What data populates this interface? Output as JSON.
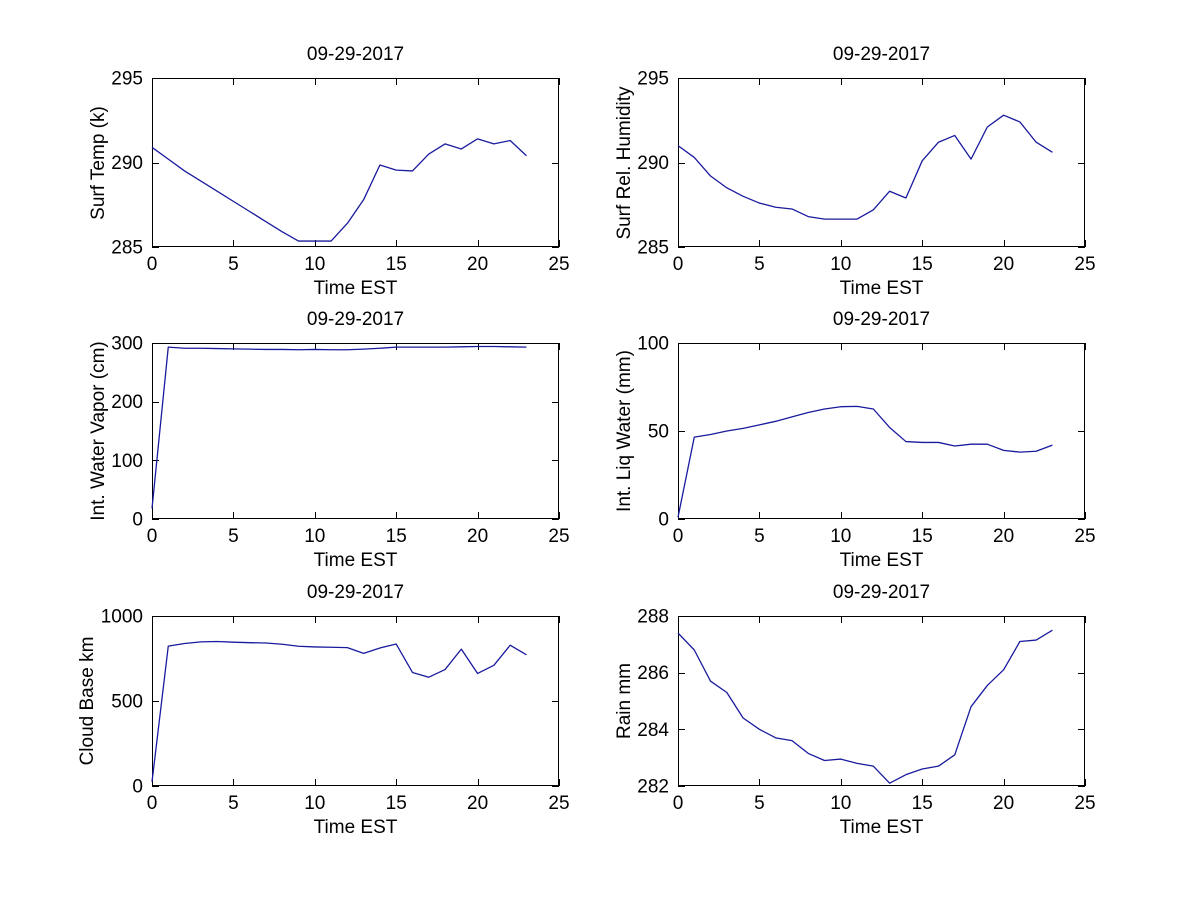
{
  "figure": {
    "background": "#ffffff",
    "axis_color": "#000000",
    "text_color": "#000000",
    "line_color": "#1a1a9e"
  },
  "chart_data": [
    {
      "type": "line",
      "title": "09-29-2017",
      "xlabel": "Time EST",
      "ylabel": "Surf Temp (k)",
      "xlim": [
        0,
        25
      ],
      "ylim": [
        285,
        295
      ],
      "xticks": [
        0,
        5,
        10,
        15,
        20,
        25
      ],
      "yticks": [
        285,
        290,
        295
      ],
      "grid": false,
      "x": [
        0,
        1,
        2,
        3,
        4,
        5,
        6,
        7,
        8,
        9,
        10,
        11,
        12,
        13,
        14,
        15,
        16,
        17,
        18,
        19,
        20,
        21,
        22,
        23
      ],
      "y": [
        290.9,
        290.2,
        289.5,
        288.9,
        288.3,
        287.7,
        287.1,
        286.5,
        285.9,
        285.35,
        285.35,
        285.35,
        286.4,
        287.8,
        289.85,
        289.55,
        289.5,
        290.5,
        291.1,
        290.8,
        291.4,
        291.1,
        291.3,
        290.4
      ]
    },
    {
      "type": "line",
      "title": "09-29-2017",
      "xlabel": "Time EST",
      "ylabel": "Surf Rel. Humidity",
      "xlim": [
        0,
        25
      ],
      "ylim": [
        285,
        295
      ],
      "xticks": [
        0,
        5,
        10,
        15,
        20,
        25
      ],
      "yticks": [
        285,
        290,
        295
      ],
      "grid": false,
      "x": [
        0,
        1,
        2,
        3,
        4,
        5,
        6,
        7,
        8,
        9,
        10,
        11,
        12,
        13,
        14,
        15,
        16,
        17,
        18,
        19,
        20,
        21,
        22,
        23
      ],
      "y": [
        291.0,
        290.3,
        289.2,
        288.5,
        288.0,
        287.6,
        287.35,
        287.25,
        286.8,
        286.65,
        286.65,
        286.65,
        287.2,
        288.3,
        287.9,
        290.1,
        291.2,
        291.6,
        290.2,
        292.1,
        292.8,
        292.4,
        291.2,
        290.6
      ]
    },
    {
      "type": "line",
      "title": "09-29-2017",
      "xlabel": "Time EST",
      "ylabel": "Int. Water Vapor (cm)",
      "xlim": [
        0,
        25
      ],
      "ylim": [
        0,
        300
      ],
      "xticks": [
        0,
        5,
        10,
        15,
        20,
        25
      ],
      "yticks": [
        0,
        100,
        200,
        300
      ],
      "grid": false,
      "x": [
        0,
        1,
        2,
        3,
        4,
        5,
        6,
        7,
        8,
        9,
        10,
        11,
        12,
        13,
        14,
        15,
        16,
        17,
        18,
        19,
        20,
        21,
        22,
        23
      ],
      "y": [
        18,
        293,
        291,
        291,
        290.5,
        290,
        289.5,
        289,
        289,
        288.5,
        289,
        288.5,
        288.5,
        289.5,
        291,
        293,
        293,
        293,
        293,
        293.5,
        294,
        294,
        293.5,
        293
      ]
    },
    {
      "type": "line",
      "title": "09-29-2017",
      "xlabel": "Time EST",
      "ylabel": "Int. Liq Water (mm)",
      "xlim": [
        0,
        25
      ],
      "ylim": [
        0,
        100
      ],
      "xticks": [
        0,
        5,
        10,
        15,
        20,
        25
      ],
      "yticks": [
        0,
        50,
        100
      ],
      "grid": false,
      "x": [
        0,
        1,
        2,
        3,
        4,
        5,
        6,
        7,
        8,
        9,
        10,
        11,
        12,
        13,
        14,
        15,
        16,
        17,
        18,
        19,
        20,
        21,
        22,
        23
      ],
      "y": [
        1,
        46.5,
        48,
        50,
        51.5,
        53.5,
        55.5,
        58,
        60.5,
        62.5,
        63.8,
        64,
        62.5,
        52,
        44,
        43.5,
        43.5,
        41.5,
        42.5,
        42.5,
        39,
        38,
        38.5,
        42
      ]
    },
    {
      "type": "line",
      "title": "09-29-2017",
      "xlabel": "Time EST",
      "ylabel": "Cloud Base km",
      "xlim": [
        0,
        25
      ],
      "ylim": [
        0,
        1000
      ],
      "xticks": [
        0,
        5,
        10,
        15,
        20,
        25
      ],
      "yticks": [
        0,
        500,
        1000
      ],
      "grid": false,
      "x": [
        0,
        1,
        2,
        3,
        4,
        5,
        6,
        7,
        8,
        9,
        10,
        11,
        12,
        13,
        14,
        15,
        16,
        17,
        18,
        19,
        20,
        21,
        22,
        23
      ],
      "y": [
        25,
        823,
        838,
        848,
        850,
        846,
        843,
        841,
        834,
        822,
        818,
        816,
        814,
        780,
        812,
        835,
        668,
        640,
        685,
        805,
        662,
        710,
        828,
        772
      ]
    },
    {
      "type": "line",
      "title": "09-29-2017",
      "xlabel": "Time EST",
      "ylabel": "Rain mm",
      "xlim": [
        0,
        25
      ],
      "ylim": [
        282,
        288
      ],
      "xticks": [
        0,
        5,
        10,
        15,
        20,
        25
      ],
      "yticks": [
        282,
        284,
        286,
        288
      ],
      "grid": false,
      "x": [
        0,
        1,
        2,
        3,
        4,
        5,
        6,
        7,
        8,
        9,
        10,
        11,
        12,
        13,
        14,
        15,
        16,
        17,
        18,
        19,
        20,
        21,
        22,
        23
      ],
      "y": [
        287.4,
        286.8,
        285.7,
        285.3,
        284.4,
        284.0,
        283.7,
        283.6,
        283.15,
        282.9,
        282.95,
        282.8,
        282.7,
        282.1,
        282.4,
        282.6,
        282.7,
        283.1,
        284.8,
        285.55,
        286.1,
        287.1,
        287.15,
        287.5
      ]
    }
  ]
}
